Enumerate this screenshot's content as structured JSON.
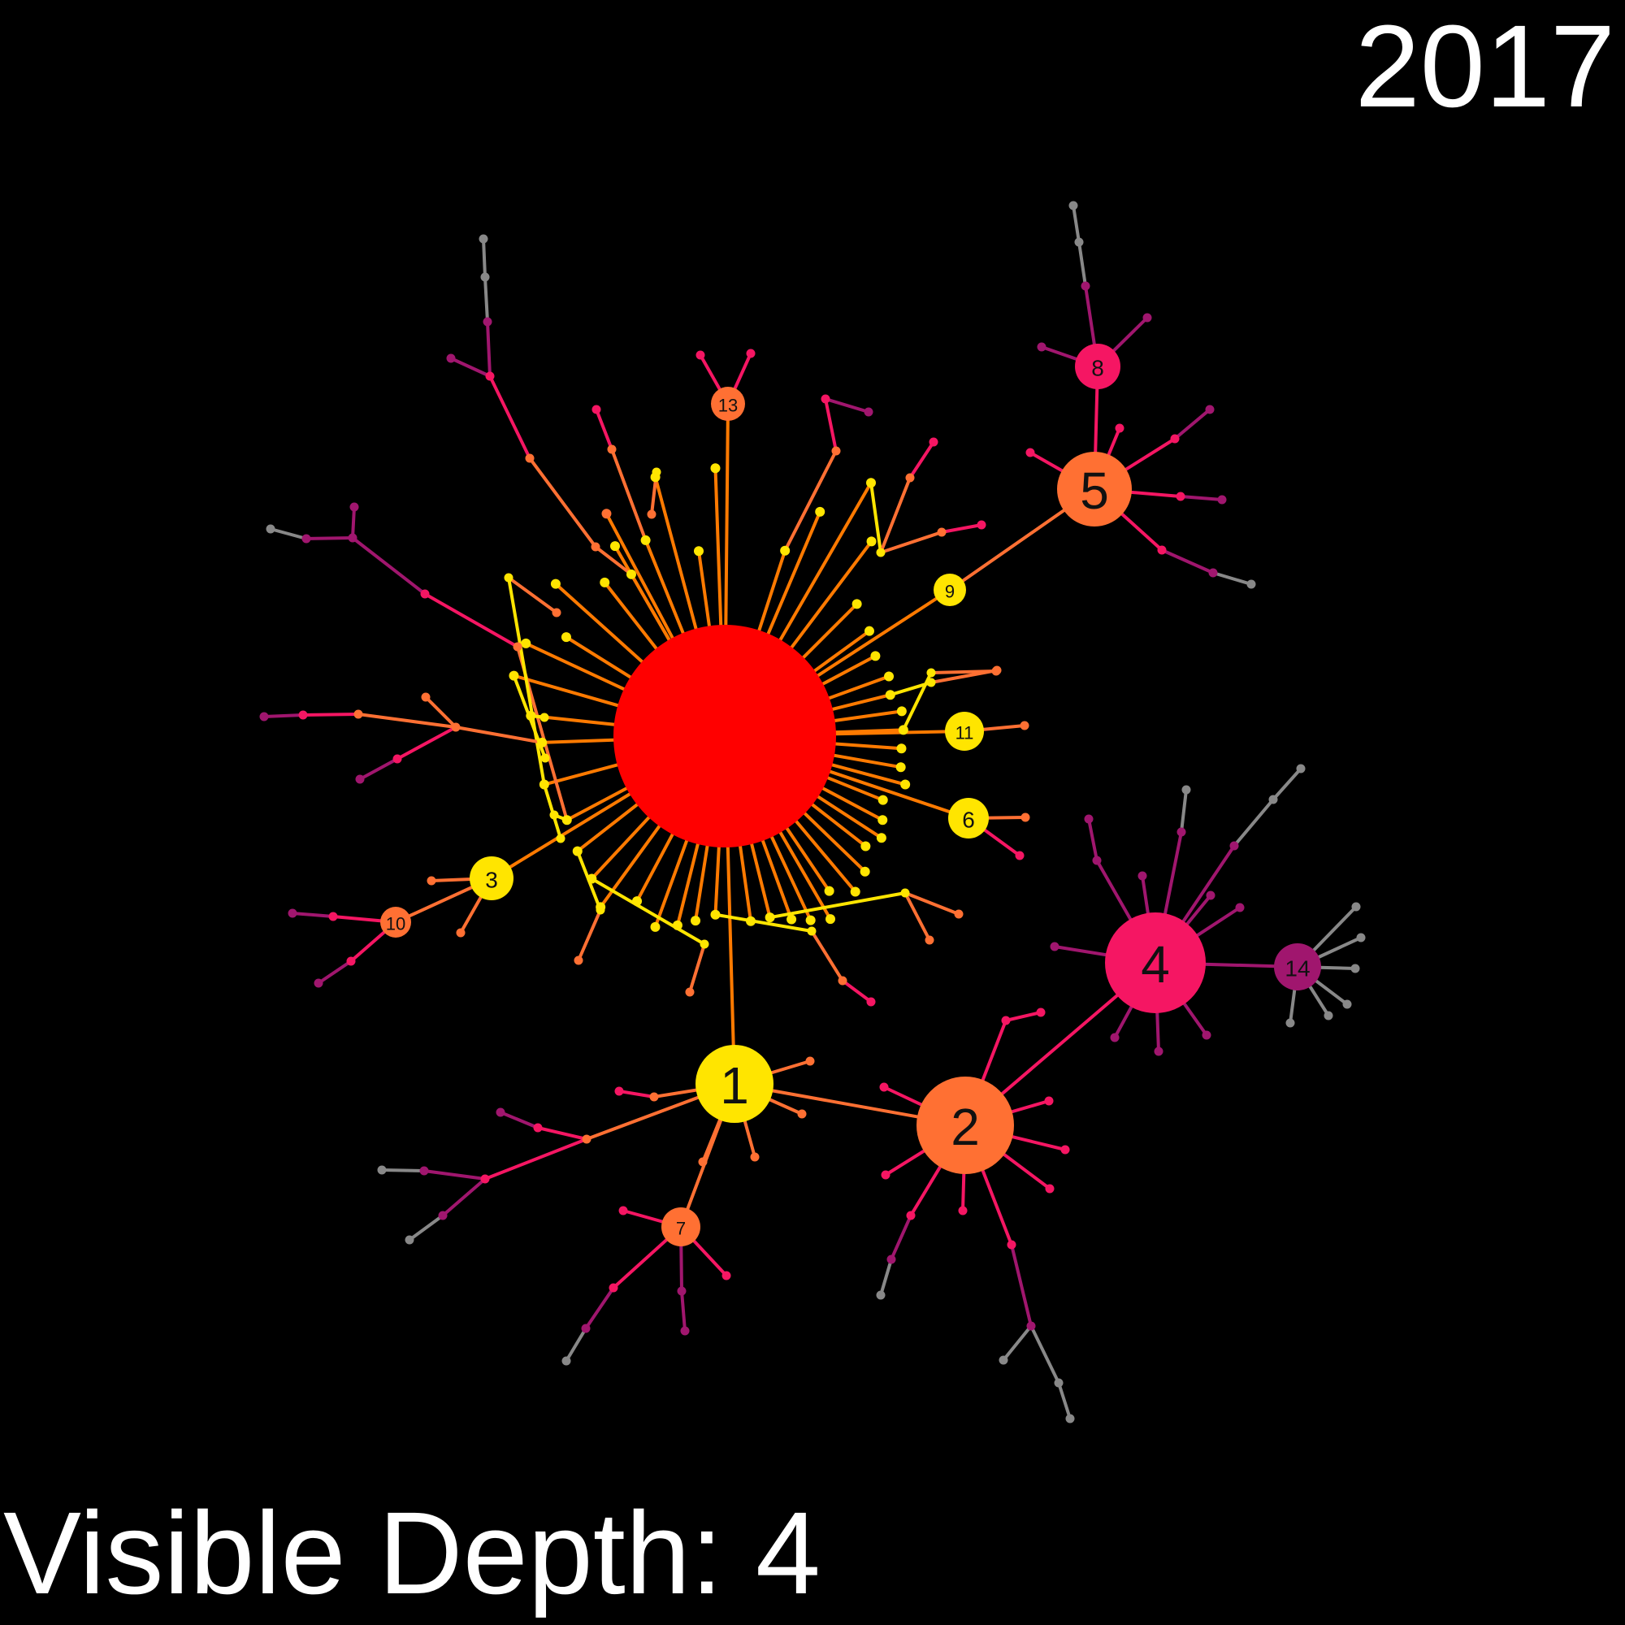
{
  "year": "2017",
  "depth_label": "Visible Depth: 4",
  "colors": {
    "background": "#000000",
    "root": "#ff0000",
    "level1": "#ffe500",
    "level2": "#ff7033",
    "level3": "#f51663",
    "level4": "#a0166e",
    "level5": "#888888",
    "edge_root": "#ff7a00"
  },
  "labeled_nodes": [
    {
      "id": "1",
      "label": "1"
    },
    {
      "id": "2",
      "label": "2"
    },
    {
      "id": "3",
      "label": "3"
    },
    {
      "id": "4",
      "label": "4"
    },
    {
      "id": "5",
      "label": "5"
    },
    {
      "id": "6",
      "label": "6"
    },
    {
      "id": "7",
      "label": "7"
    },
    {
      "id": "8",
      "label": "8"
    },
    {
      "id": "9",
      "label": "9"
    },
    {
      "id": "10",
      "label": "10"
    },
    {
      "id": "11",
      "label": "11"
    },
    {
      "id": "13",
      "label": "13"
    },
    {
      "id": "14",
      "label": "14"
    }
  ]
}
